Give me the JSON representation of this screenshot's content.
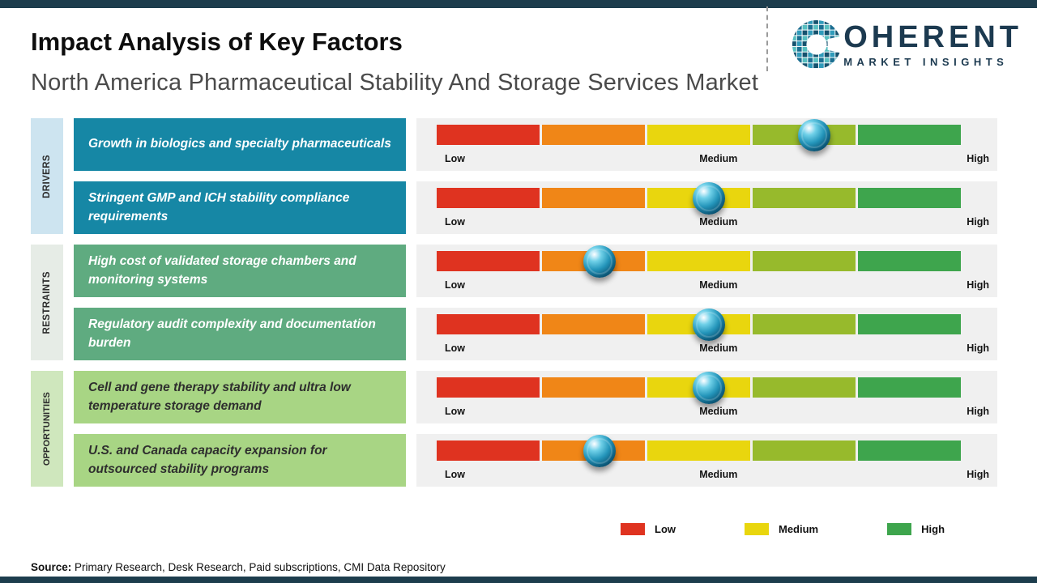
{
  "page": {
    "title": "Impact Analysis of Key Factors",
    "subtitle": "North America Pharmaceutical Stability And Storage Services Market"
  },
  "logo": {
    "brand": "COHERENT",
    "brand_rest": "OHERENT",
    "tagline": "MARKET INSIGHTS"
  },
  "chart_data": {
    "type": "bar",
    "title": "Impact Analysis of Key Factors",
    "subtitle": "North America Pharmaceutical Stability And Storage Services Market",
    "scale_labels": [
      "Low",
      "Medium",
      "High"
    ],
    "segment_colors": [
      "#df3320",
      "#f08617",
      "#e9d60e",
      "#97ba2c",
      "#3ea54d"
    ],
    "groups": [
      {
        "label": "DRIVERS"
      },
      {
        "label": "RESTRAINTS"
      },
      {
        "label": "OPPORTUNITIES"
      }
    ],
    "rows": [
      {
        "group": "DRIVERS",
        "factor": "Growth in biologics and specialty pharmaceuticals",
        "impact_pct": 72
      },
      {
        "group": "DRIVERS",
        "factor": "Stringent GMP and ICH stability compliance requirements",
        "impact_pct": 52
      },
      {
        "group": "RESTRAINTS",
        "factor": "High cost of validated storage chambers and monitoring systems",
        "impact_pct": 31
      },
      {
        "group": "RESTRAINTS",
        "factor": "Regulatory audit complexity and documentation burden",
        "impact_pct": 52
      },
      {
        "group": "OPPORTUNITIES",
        "factor": "Cell and gene therapy stability and ultra low temperature storage demand",
        "impact_pct": 52
      },
      {
        "group": "OPPORTUNITIES",
        "factor": "U.S. and Canada capacity expansion for outsourced stability programs",
        "impact_pct": 31
      }
    ]
  },
  "legend": [
    {
      "label": "Low",
      "color": "#df3320"
    },
    {
      "label": "Medium",
      "color": "#e9d60e"
    },
    {
      "label": "High",
      "color": "#3ea54d"
    }
  ],
  "footer": {
    "source_label": "Source:",
    "source_text": "Primary Research, Desk Research, Paid subscriptions, CMI Data Repository"
  },
  "colors": {
    "accent_strip": "#1d3d4d",
    "brand_navy": "#1c3a50",
    "driver_box": "#1687a5",
    "restraint_box": "#5fab80",
    "opportunity_box": "#a8d584",
    "driver_panel": "#cde4f0",
    "restraint_panel": "#e6ece6",
    "opportunity_panel": "#cfe7bd",
    "marker": "#2596bb"
  }
}
